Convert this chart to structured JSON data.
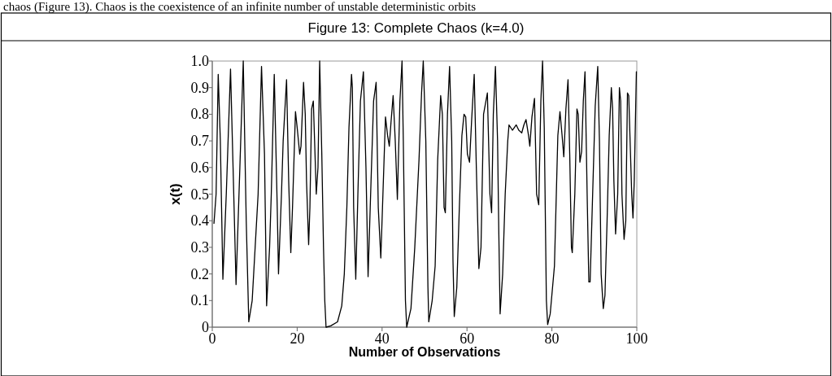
{
  "chart_data": {
    "type": "line",
    "title": "Figure 13: Complete Chaos (k=4.0)",
    "xlabel": "Number of Observations",
    "ylabel": "x(t)",
    "annotations": [
      "chaos (Figure 13). Chaos is the coexistence of an infinite number of unstable deterministic orbits"
    ],
    "xlim": [
      0,
      100
    ],
    "xticks": [
      0,
      20,
      40,
      60,
      80,
      100
    ],
    "ylim": [
      0,
      1
    ],
    "yticks": [
      0,
      0.1,
      0.2,
      0.3,
      0.4,
      0.5,
      0.6,
      0.7,
      0.8,
      0.9,
      {
        "value": 1,
        "label": "1.0"
      }
    ],
    "grid": false,
    "marker": "none",
    "line_style": "solid",
    "series": [
      {
        "color": "#000000",
        "x": [
          0.4,
          0.9,
          1.4,
          1.9,
          2.5,
          3.3,
          4.3,
          4.9,
          5.6,
          6.5,
          7.3,
          8.0,
          8.6,
          9.4,
          10.1,
          10.8,
          11.6,
          12.3,
          12.8,
          13.5,
          13.9,
          14.6,
          15.3,
          15.6,
          16.3,
          16.7,
          17.5,
          18.0,
          18.5,
          18.9,
          19.6,
          20.0,
          20.6,
          20.9,
          21.5,
          21.9,
          22.2,
          22.7,
          23.0,
          23.4,
          23.8,
          24.1,
          24.5,
          24.9,
          25.3,
          25.8,
          26.2,
          26.5,
          26.8,
          27.9,
          29.5,
          30.5,
          31.1,
          31.7,
          32.2,
          32.8,
          33.0,
          33.3,
          33.8,
          34.3,
          34.9,
          35.6,
          36.2,
          36.7,
          37.4,
          38.0,
          38.6,
          39.1,
          39.7,
          40.2,
          40.8,
          41.3,
          41.7,
          42.1,
          42.6,
          43.1,
          43.6,
          44.2,
          44.7,
          45.0,
          45.5,
          45.8,
          46.8,
          47.7,
          48.7,
          49.3,
          49.7,
          50.3,
          50.8,
          51.0,
          51.8,
          52.5,
          53.1,
          53.8,
          54.2,
          54.6,
          54.9,
          55.4,
          55.9,
          56.4,
          56.7,
          57.0,
          57.6,
          58.2,
          58.8,
          59.3,
          59.7,
          60.1,
          60.6,
          61.1,
          61.7,
          62.2,
          62.8,
          63.3,
          63.9,
          64.8,
          65.4,
          65.8,
          66.2,
          66.7,
          67.2,
          67.5,
          67.8,
          68.4,
          69.0,
          69.6,
          69.9,
          70.7,
          71.6,
          72.2,
          72.9,
          73.4,
          73.9,
          74.5,
          74.8,
          75.3,
          75.9,
          76.4,
          76.9,
          77.4,
          77.8,
          78.2,
          78.7,
          79.0,
          79.6,
          80.6,
          81.4,
          81.9,
          82.4,
          82.8,
          83.3,
          83.8,
          84.2,
          84.6,
          84.8,
          85.4,
          85.9,
          86.2,
          86.6,
          87.0,
          87.4,
          87.8,
          88.3,
          88.7,
          89.0,
          89.6,
          90.2,
          90.8,
          91.2,
          91.6,
          92.1,
          92.5,
          93.0,
          93.5,
          94.0,
          94.3,
          94.6,
          95.0,
          95.5,
          95.9,
          96.2,
          96.5,
          97.0,
          97.4,
          97.8,
          98.1,
          98.8,
          99.1,
          99.4,
          99.9
        ],
        "values": [
          0.39,
          0.5,
          0.95,
          0.7,
          0.18,
          0.5,
          0.97,
          0.6,
          0.16,
          0.6,
          1.0,
          0.4,
          0.02,
          0.1,
          0.3,
          0.5,
          0.98,
          0.65,
          0.08,
          0.3,
          0.5,
          0.95,
          0.45,
          0.2,
          0.5,
          0.7,
          0.93,
          0.55,
          0.28,
          0.45,
          0.81,
          0.75,
          0.65,
          0.68,
          0.92,
          0.8,
          0.55,
          0.31,
          0.45,
          0.82,
          0.85,
          0.7,
          0.5,
          0.6,
          1.0,
          0.65,
          0.3,
          0.1,
          0.0,
          0.005,
          0.02,
          0.08,
          0.2,
          0.45,
          0.75,
          0.95,
          0.9,
          0.45,
          0.18,
          0.5,
          0.85,
          0.96,
          0.6,
          0.19,
          0.55,
          0.85,
          0.92,
          0.45,
          0.26,
          0.5,
          0.79,
          0.72,
          0.68,
          0.77,
          0.87,
          0.7,
          0.48,
          0.85,
          1.0,
          0.7,
          0.1,
          0.0,
          0.07,
          0.3,
          0.63,
          0.88,
          1.0,
          0.7,
          0.15,
          0.02,
          0.1,
          0.23,
          0.63,
          0.87,
          0.8,
          0.45,
          0.43,
          0.8,
          0.98,
          0.7,
          0.25,
          0.04,
          0.15,
          0.45,
          0.72,
          0.8,
          0.79,
          0.65,
          0.62,
          0.78,
          0.95,
          0.6,
          0.22,
          0.3,
          0.8,
          0.88,
          0.5,
          0.43,
          0.8,
          0.98,
          0.7,
          0.35,
          0.05,
          0.2,
          0.5,
          0.7,
          0.76,
          0.74,
          0.76,
          0.74,
          0.73,
          0.76,
          0.78,
          0.72,
          0.68,
          0.79,
          0.86,
          0.5,
          0.46,
          0.85,
          1.0,
          0.75,
          0.1,
          0.01,
          0.05,
          0.23,
          0.72,
          0.81,
          0.72,
          0.64,
          0.82,
          0.93,
          0.65,
          0.3,
          0.28,
          0.5,
          0.82,
          0.8,
          0.62,
          0.66,
          0.85,
          0.96,
          0.5,
          0.17,
          0.17,
          0.5,
          0.83,
          0.98,
          0.7,
          0.2,
          0.07,
          0.12,
          0.4,
          0.72,
          0.9,
          0.82,
          0.55,
          0.35,
          0.5,
          0.9,
          0.85,
          0.5,
          0.33,
          0.4,
          0.88,
          0.87,
          0.5,
          0.41,
          0.55,
          0.96
        ]
      }
    ]
  }
}
